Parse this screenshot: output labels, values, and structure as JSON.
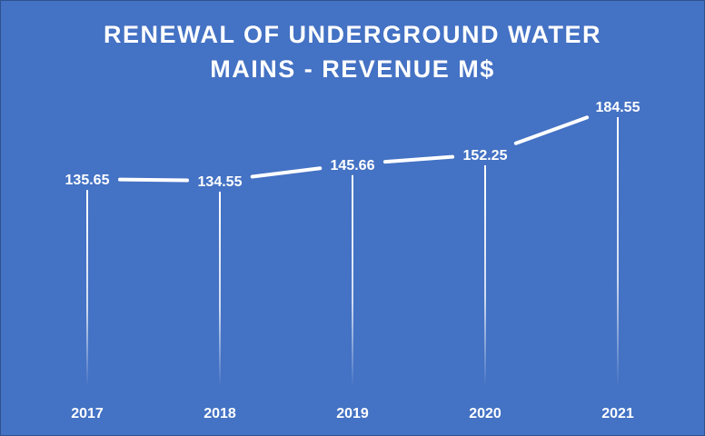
{
  "chart_data": {
    "type": "line",
    "title_line1": "RENEWAL OF UNDERGROUND WATER",
    "title_line2": "MAINS - REVENUE M$",
    "categories": [
      "2017",
      "2018",
      "2019",
      "2020",
      "2021"
    ],
    "values": [
      135.65,
      134.55,
      145.66,
      152.25,
      184.55
    ],
    "value_labels": [
      "135.65",
      "134.55",
      "145.66",
      "152.25",
      "184.55"
    ],
    "xlabel": "",
    "ylabel": "",
    "grid": false,
    "legend": "none",
    "drop_lines": true,
    "colors": {
      "background": "#4472c4",
      "line": "#ffffff",
      "text": "#ffffff"
    }
  }
}
